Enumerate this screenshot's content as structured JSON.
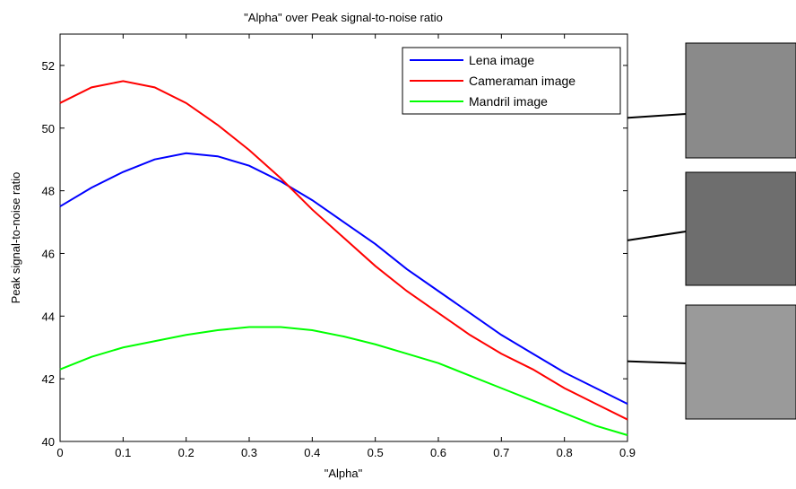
{
  "chart_data": {
    "type": "line",
    "title": "\"Alpha\" over Peak signal-to-noise ratio",
    "x_label": "\"Alpha\"",
    "y_label": "Peak signal-to-noise ratio",
    "x": [
      0,
      0.05,
      0.1,
      0.15,
      0.2,
      0.25,
      0.3,
      0.35,
      0.4,
      0.45,
      0.5,
      0.55,
      0.6,
      0.65,
      0.7,
      0.75,
      0.8,
      0.85,
      0.9
    ],
    "series": [
      {
        "name": "Lena image",
        "color": "#0000ff",
        "values": [
          47.5,
          48.1,
          48.6,
          49.0,
          49.2,
          49.1,
          48.8,
          48.3,
          47.7,
          47.0,
          46.3,
          45.5,
          44.8,
          44.1,
          43.4,
          42.8,
          42.2,
          41.7,
          41.2
        ]
      },
      {
        "name": "Cameraman image",
        "color": "#ff0000",
        "values": [
          50.8,
          51.3,
          51.5,
          51.3,
          50.8,
          50.1,
          49.3,
          48.4,
          47.4,
          46.5,
          45.6,
          44.8,
          44.1,
          43.4,
          42.8,
          42.3,
          41.7,
          41.2,
          40.7
        ]
      },
      {
        "name": "Mandril image",
        "color": "#00ff00",
        "values": [
          42.3,
          42.7,
          43.0,
          43.2,
          43.4,
          43.55,
          43.65,
          43.65,
          43.55,
          43.35,
          43.1,
          42.8,
          42.5,
          42.1,
          41.7,
          41.3,
          40.9,
          40.5,
          40.2
        ]
      }
    ],
    "xlim": [
      0,
      0.9
    ],
    "xticks": [
      0,
      0.1,
      0.2,
      0.3,
      0.4,
      0.5,
      0.6,
      0.7,
      0.8,
      0.9
    ],
    "ylim": [
      40,
      53
    ],
    "yticks": [
      40,
      42,
      44,
      46,
      48,
      50,
      52
    ],
    "legend": "upper right",
    "grid": false
  }
}
